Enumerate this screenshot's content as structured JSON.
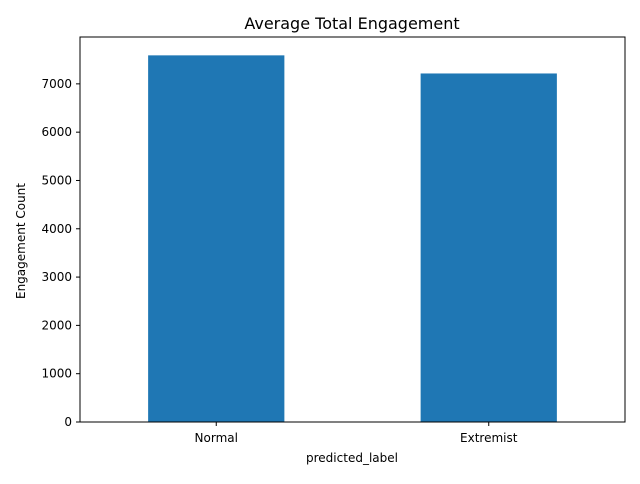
{
  "chart_data": {
    "type": "bar",
    "title": "Average Total Engagement",
    "xlabel": "predicted_label",
    "ylabel": "Engagement Count",
    "categories": [
      "Normal",
      "Extremist"
    ],
    "values": [
      7590,
      7215
    ],
    "ylim": [
      0,
      7970
    ],
    "yticks": [
      0,
      1000,
      2000,
      3000,
      4000,
      5000,
      6000,
      7000
    ],
    "grid": false,
    "legend": "none",
    "colors": {
      "bar": "#1f77b4",
      "axis": "#000000",
      "background": "#ffffff"
    }
  }
}
